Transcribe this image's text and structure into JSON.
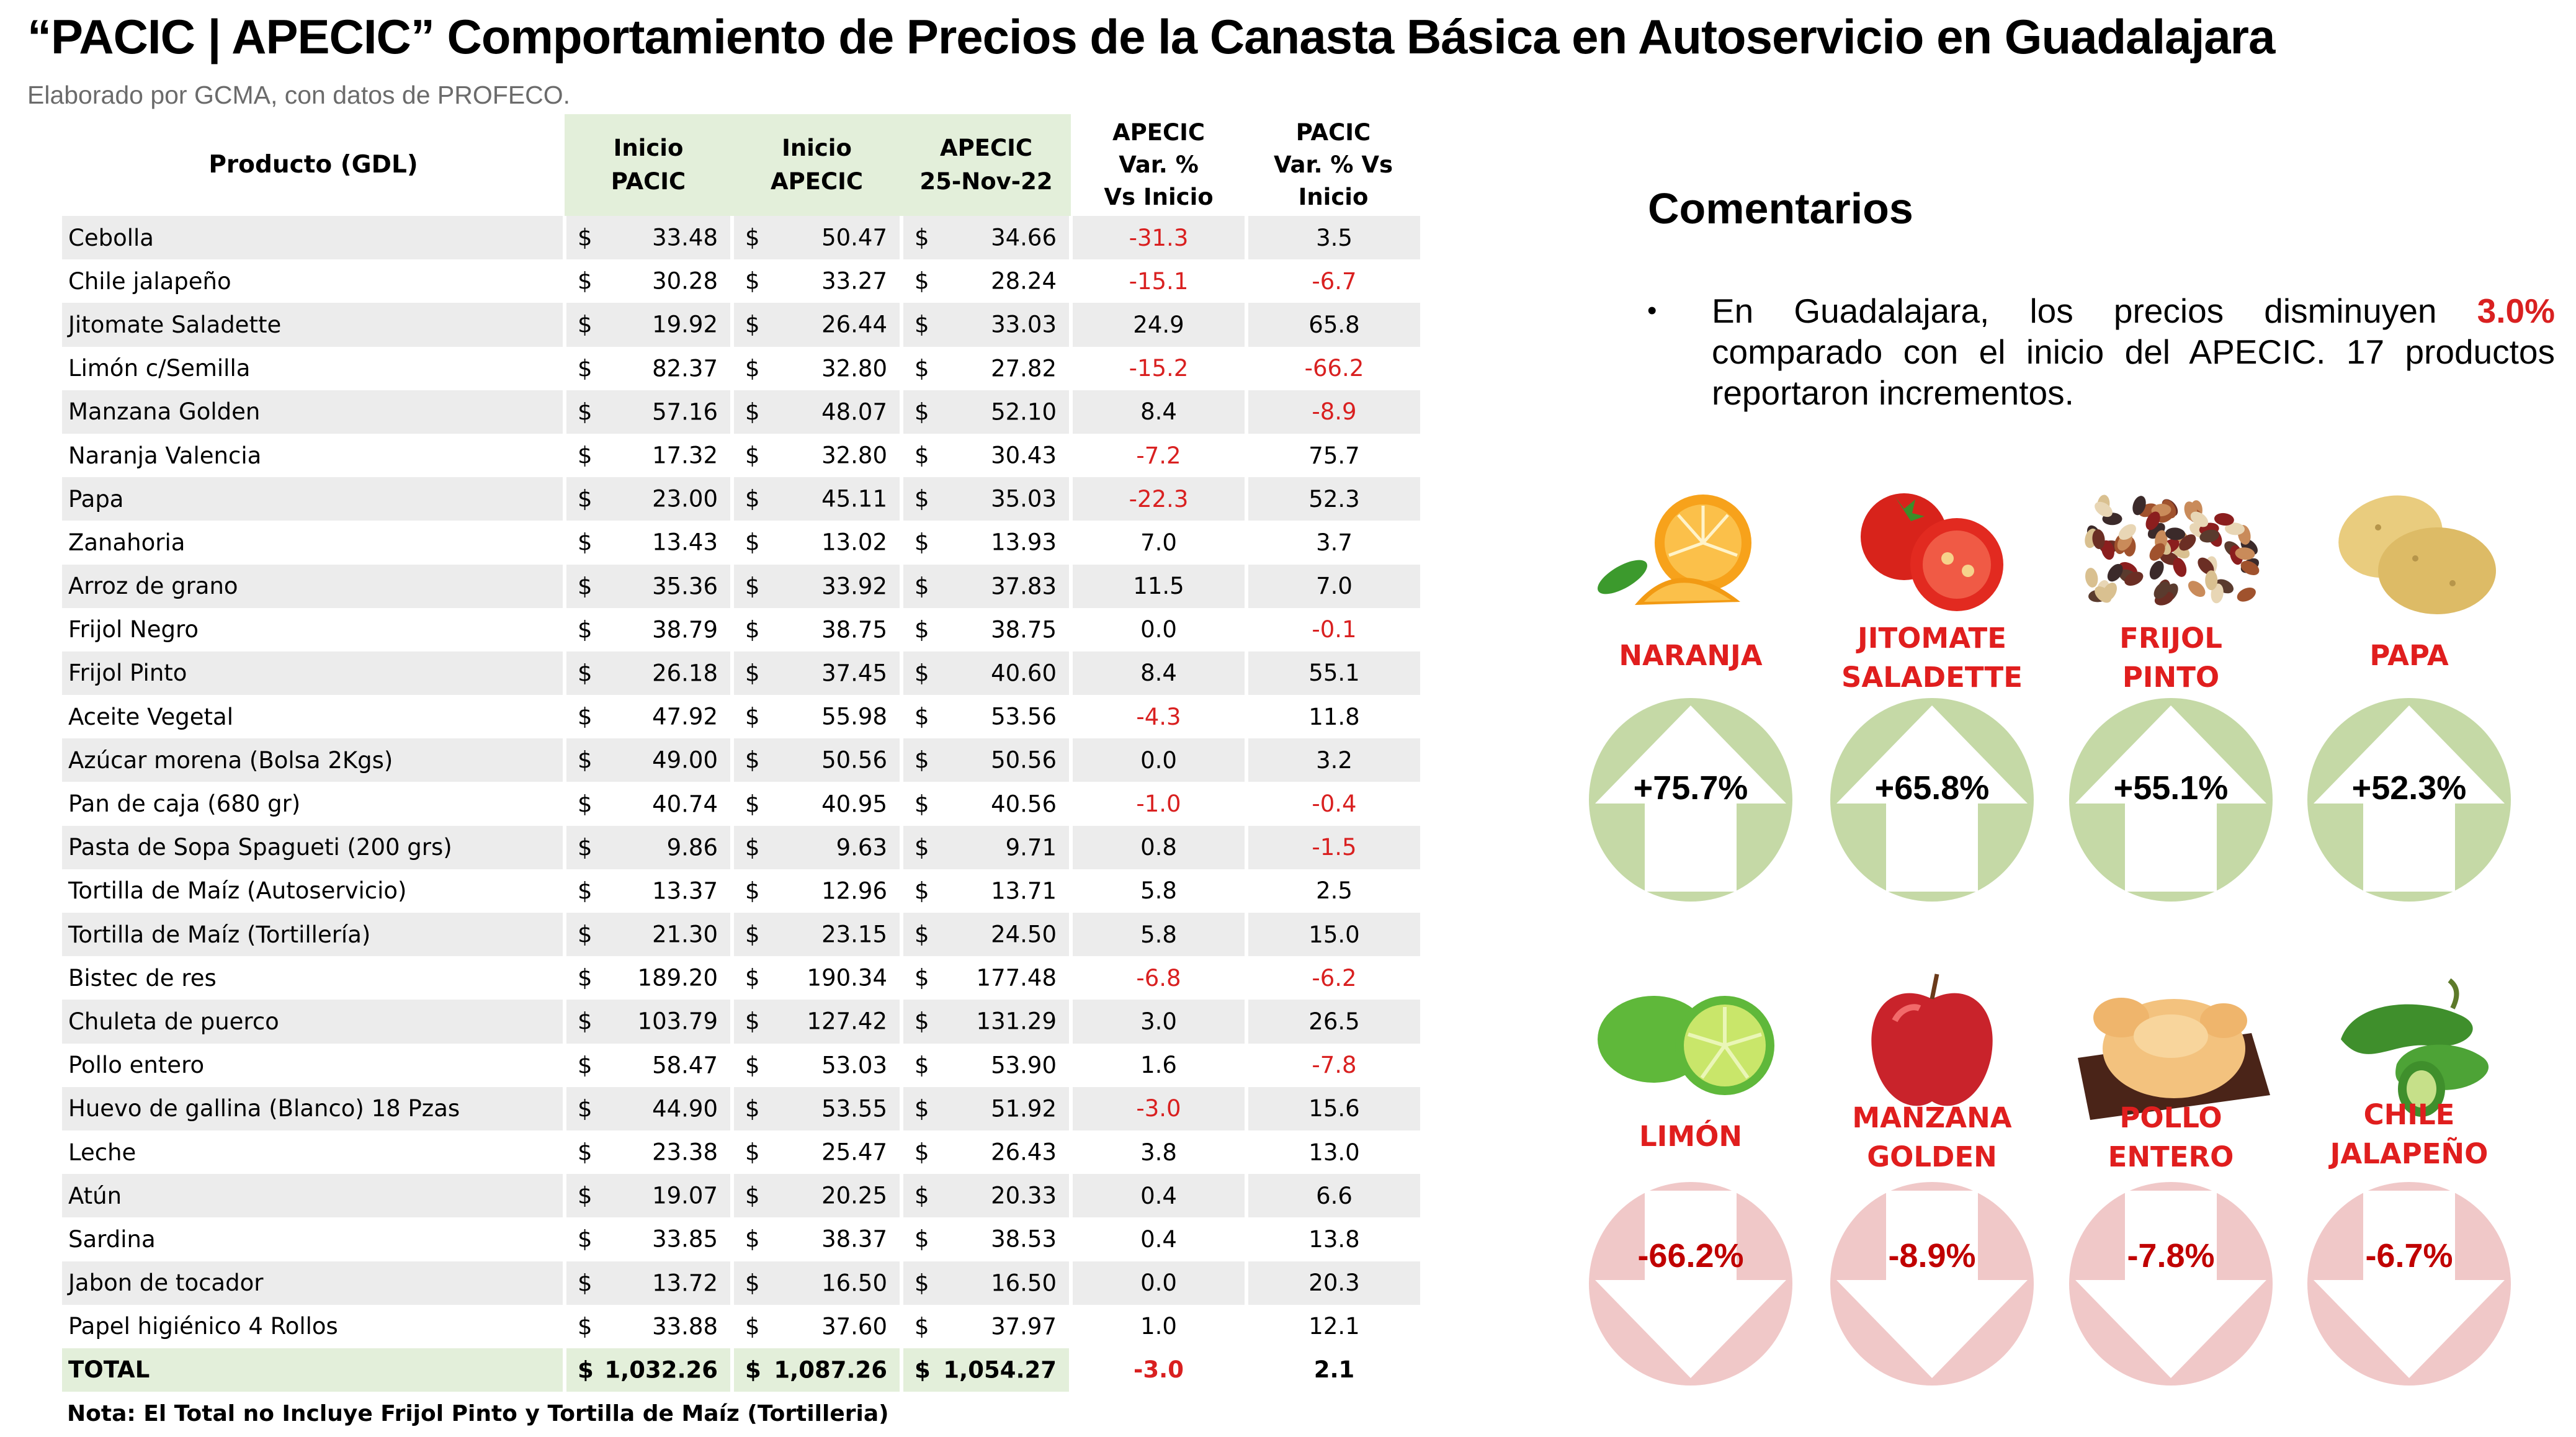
{
  "title": "“PACIC | APECIC” Comportamiento de Precios de la Canasta Básica en Autoservicio en Guadalajara",
  "subtitle": "Elaborado por GCMA, con datos de PROFECO.",
  "table": {
    "headers": {
      "producto": "Producto (GDL)",
      "inicio_pacic": [
        "Inicio",
        "PACIC"
      ],
      "inicio_apecic": [
        "Inicio",
        "APECIC"
      ],
      "apecic_fecha": [
        "APECIC",
        "25-Nov-22"
      ],
      "var_apecic": [
        "APECIC",
        "Var. %",
        "Vs  Inicio"
      ],
      "var_pacic": [
        "PACIC",
        "Var. % Vs",
        "Inicio"
      ]
    },
    "currency": "$",
    "rows": [
      {
        "producto": "Cebolla",
        "inicio_pacic": "33.48",
        "inicio_apecic": "50.47",
        "apecic": "34.66",
        "var_apecic": "-31.3",
        "var_pacic": "3.5"
      },
      {
        "producto": "Chile jalapeño",
        "inicio_pacic": "30.28",
        "inicio_apecic": "33.27",
        "apecic": "28.24",
        "var_apecic": "-15.1",
        "var_pacic": "-6.7"
      },
      {
        "producto": "Jitomate Saladette",
        "inicio_pacic": "19.92",
        "inicio_apecic": "26.44",
        "apecic": "33.03",
        "var_apecic": "24.9",
        "var_pacic": "65.8"
      },
      {
        "producto": "Limón c/Semilla",
        "inicio_pacic": "82.37",
        "inicio_apecic": "32.80",
        "apecic": "27.82",
        "var_apecic": "-15.2",
        "var_pacic": "-66.2"
      },
      {
        "producto": "Manzana Golden",
        "inicio_pacic": "57.16",
        "inicio_apecic": "48.07",
        "apecic": "52.10",
        "var_apecic": "8.4",
        "var_pacic": "-8.9"
      },
      {
        "producto": "Naranja Valencia",
        "inicio_pacic": "17.32",
        "inicio_apecic": "32.80",
        "apecic": "30.43",
        "var_apecic": "-7.2",
        "var_pacic": "75.7"
      },
      {
        "producto": "Papa",
        "inicio_pacic": "23.00",
        "inicio_apecic": "45.11",
        "apecic": "35.03",
        "var_apecic": "-22.3",
        "var_pacic": "52.3"
      },
      {
        "producto": "Zanahoria",
        "inicio_pacic": "13.43",
        "inicio_apecic": "13.02",
        "apecic": "13.93",
        "var_apecic": "7.0",
        "var_pacic": "3.7"
      },
      {
        "producto": "Arroz de grano",
        "inicio_pacic": "35.36",
        "inicio_apecic": "33.92",
        "apecic": "37.83",
        "var_apecic": "11.5",
        "var_pacic": "7.0"
      },
      {
        "producto": "Frijol Negro",
        "inicio_pacic": "38.79",
        "inicio_apecic": "38.75",
        "apecic": "38.75",
        "var_apecic": "0.0",
        "var_pacic": "-0.1"
      },
      {
        "producto": "Frijol Pinto",
        "inicio_pacic": "26.18",
        "inicio_apecic": "37.45",
        "apecic": "40.60",
        "var_apecic": "8.4",
        "var_pacic": "55.1"
      },
      {
        "producto": "Aceite Vegetal",
        "inicio_pacic": "47.92",
        "inicio_apecic": "55.98",
        "apecic": "53.56",
        "var_apecic": "-4.3",
        "var_pacic": "11.8"
      },
      {
        "producto": "Azúcar morena (Bolsa 2Kgs)",
        "inicio_pacic": "49.00",
        "inicio_apecic": "50.56",
        "apecic": "50.56",
        "var_apecic": "0.0",
        "var_pacic": "3.2"
      },
      {
        "producto": "Pan de caja (680 gr)",
        "inicio_pacic": "40.74",
        "inicio_apecic": "40.95",
        "apecic": "40.56",
        "var_apecic": "-1.0",
        "var_pacic": "-0.4"
      },
      {
        "producto": "Pasta de Sopa Spagueti (200 grs)",
        "inicio_pacic": "9.86",
        "inicio_apecic": "9.63",
        "apecic": "9.71",
        "var_apecic": "0.8",
        "var_pacic": "-1.5"
      },
      {
        "producto": "Tortilla de Maíz (Autoservicio)",
        "inicio_pacic": "13.37",
        "inicio_apecic": "12.96",
        "apecic": "13.71",
        "var_apecic": "5.8",
        "var_pacic": "2.5"
      },
      {
        "producto": "Tortilla de Maíz (Tortillería)",
        "inicio_pacic": "21.30",
        "inicio_apecic": "23.15",
        "apecic": "24.50",
        "var_apecic": "5.8",
        "var_pacic": "15.0"
      },
      {
        "producto": "Bistec de res",
        "inicio_pacic": "189.20",
        "inicio_apecic": "190.34",
        "apecic": "177.48",
        "var_apecic": "-6.8",
        "var_pacic": "-6.2"
      },
      {
        "producto": "Chuleta de puerco",
        "inicio_pacic": "103.79",
        "inicio_apecic": "127.42",
        "apecic": "131.29",
        "var_apecic": "3.0",
        "var_pacic": "26.5"
      },
      {
        "producto": "Pollo entero",
        "inicio_pacic": "58.47",
        "inicio_apecic": "53.03",
        "apecic": "53.90",
        "var_apecic": "1.6",
        "var_pacic": "-7.8"
      },
      {
        "producto": "Huevo de gallina (Blanco) 18 Pzas",
        "inicio_pacic": "44.90",
        "inicio_apecic": "53.55",
        "apecic": "51.92",
        "var_apecic": "-3.0",
        "var_pacic": "15.6"
      },
      {
        "producto": "Leche",
        "inicio_pacic": "23.38",
        "inicio_apecic": "25.47",
        "apecic": "26.43",
        "var_apecic": "3.8",
        "var_pacic": "13.0"
      },
      {
        "producto": "Atún",
        "inicio_pacic": "19.07",
        "inicio_apecic": "20.25",
        "apecic": "20.33",
        "var_apecic": "0.4",
        "var_pacic": "6.6"
      },
      {
        "producto": "Sardina",
        "inicio_pacic": "33.85",
        "inicio_apecic": "38.37",
        "apecic": "38.53",
        "var_apecic": "0.4",
        "var_pacic": "13.8"
      },
      {
        "producto": "Jabon de tocador",
        "inicio_pacic": "13.72",
        "inicio_apecic": "16.50",
        "apecic": "16.50",
        "var_apecic": "0.0",
        "var_pacic": "20.3"
      },
      {
        "producto": "Papel higiénico 4 Rollos",
        "inicio_pacic": "33.88",
        "inicio_apecic": "37.60",
        "apecic": "37.97",
        "var_apecic": "1.0",
        "var_pacic": "12.1"
      }
    ],
    "total": {
      "producto": "TOTAL",
      "inicio_pacic": "1,032.26",
      "inicio_apecic": "1,087.26",
      "apecic": "1,054.27",
      "var_apecic": "-3.0",
      "var_pacic": "2.1"
    }
  },
  "note": "Nota: El Total no Incluye Frijol Pinto y Tortilla de Maíz (Tortilleria)",
  "comments": {
    "title": "Comentarios",
    "bullet": "•",
    "text_before": "En Guadalajara, los precios disminuyen ",
    "highlight": "3.0%",
    "text_after": " comparado con el inicio del APECIC. 17 productos reportaron incrementos."
  },
  "increases": [
    {
      "label": [
        "NARANJA"
      ],
      "pct": "+75.7%",
      "icon": "orange-icon"
    },
    {
      "label": [
        "JITOMATE",
        "SALADETTE"
      ],
      "pct": "+65.8%",
      "icon": "tomato-icon"
    },
    {
      "label": [
        "FRIJOL",
        "PINTO"
      ],
      "pct": "+55.1%",
      "icon": "beans-icon"
    },
    {
      "label": [
        "PAPA"
      ],
      "pct": "+52.3%",
      "icon": "potato-icon"
    }
  ],
  "decreases": [
    {
      "label": [
        "LIMÓN"
      ],
      "pct": "-66.2%",
      "icon": "lime-icon"
    },
    {
      "label": [
        "MANZANA",
        "GOLDEN"
      ],
      "pct": "-8.9%",
      "icon": "apple-icon"
    },
    {
      "label": [
        "POLLO",
        "ENTERO"
      ],
      "pct": "-7.8%",
      "icon": "chicken-icon"
    },
    {
      "label": [
        "CHILE",
        "JALAPEÑO"
      ],
      "pct": "-6.7%",
      "icon": "jalapeno-icon"
    }
  ],
  "colors": {
    "negative": "#d92020",
    "label_red": "#e01e1e",
    "header_green": "#e3efda",
    "up_circle": "#c5d9a6",
    "down_circle": "#f0c8c8"
  }
}
